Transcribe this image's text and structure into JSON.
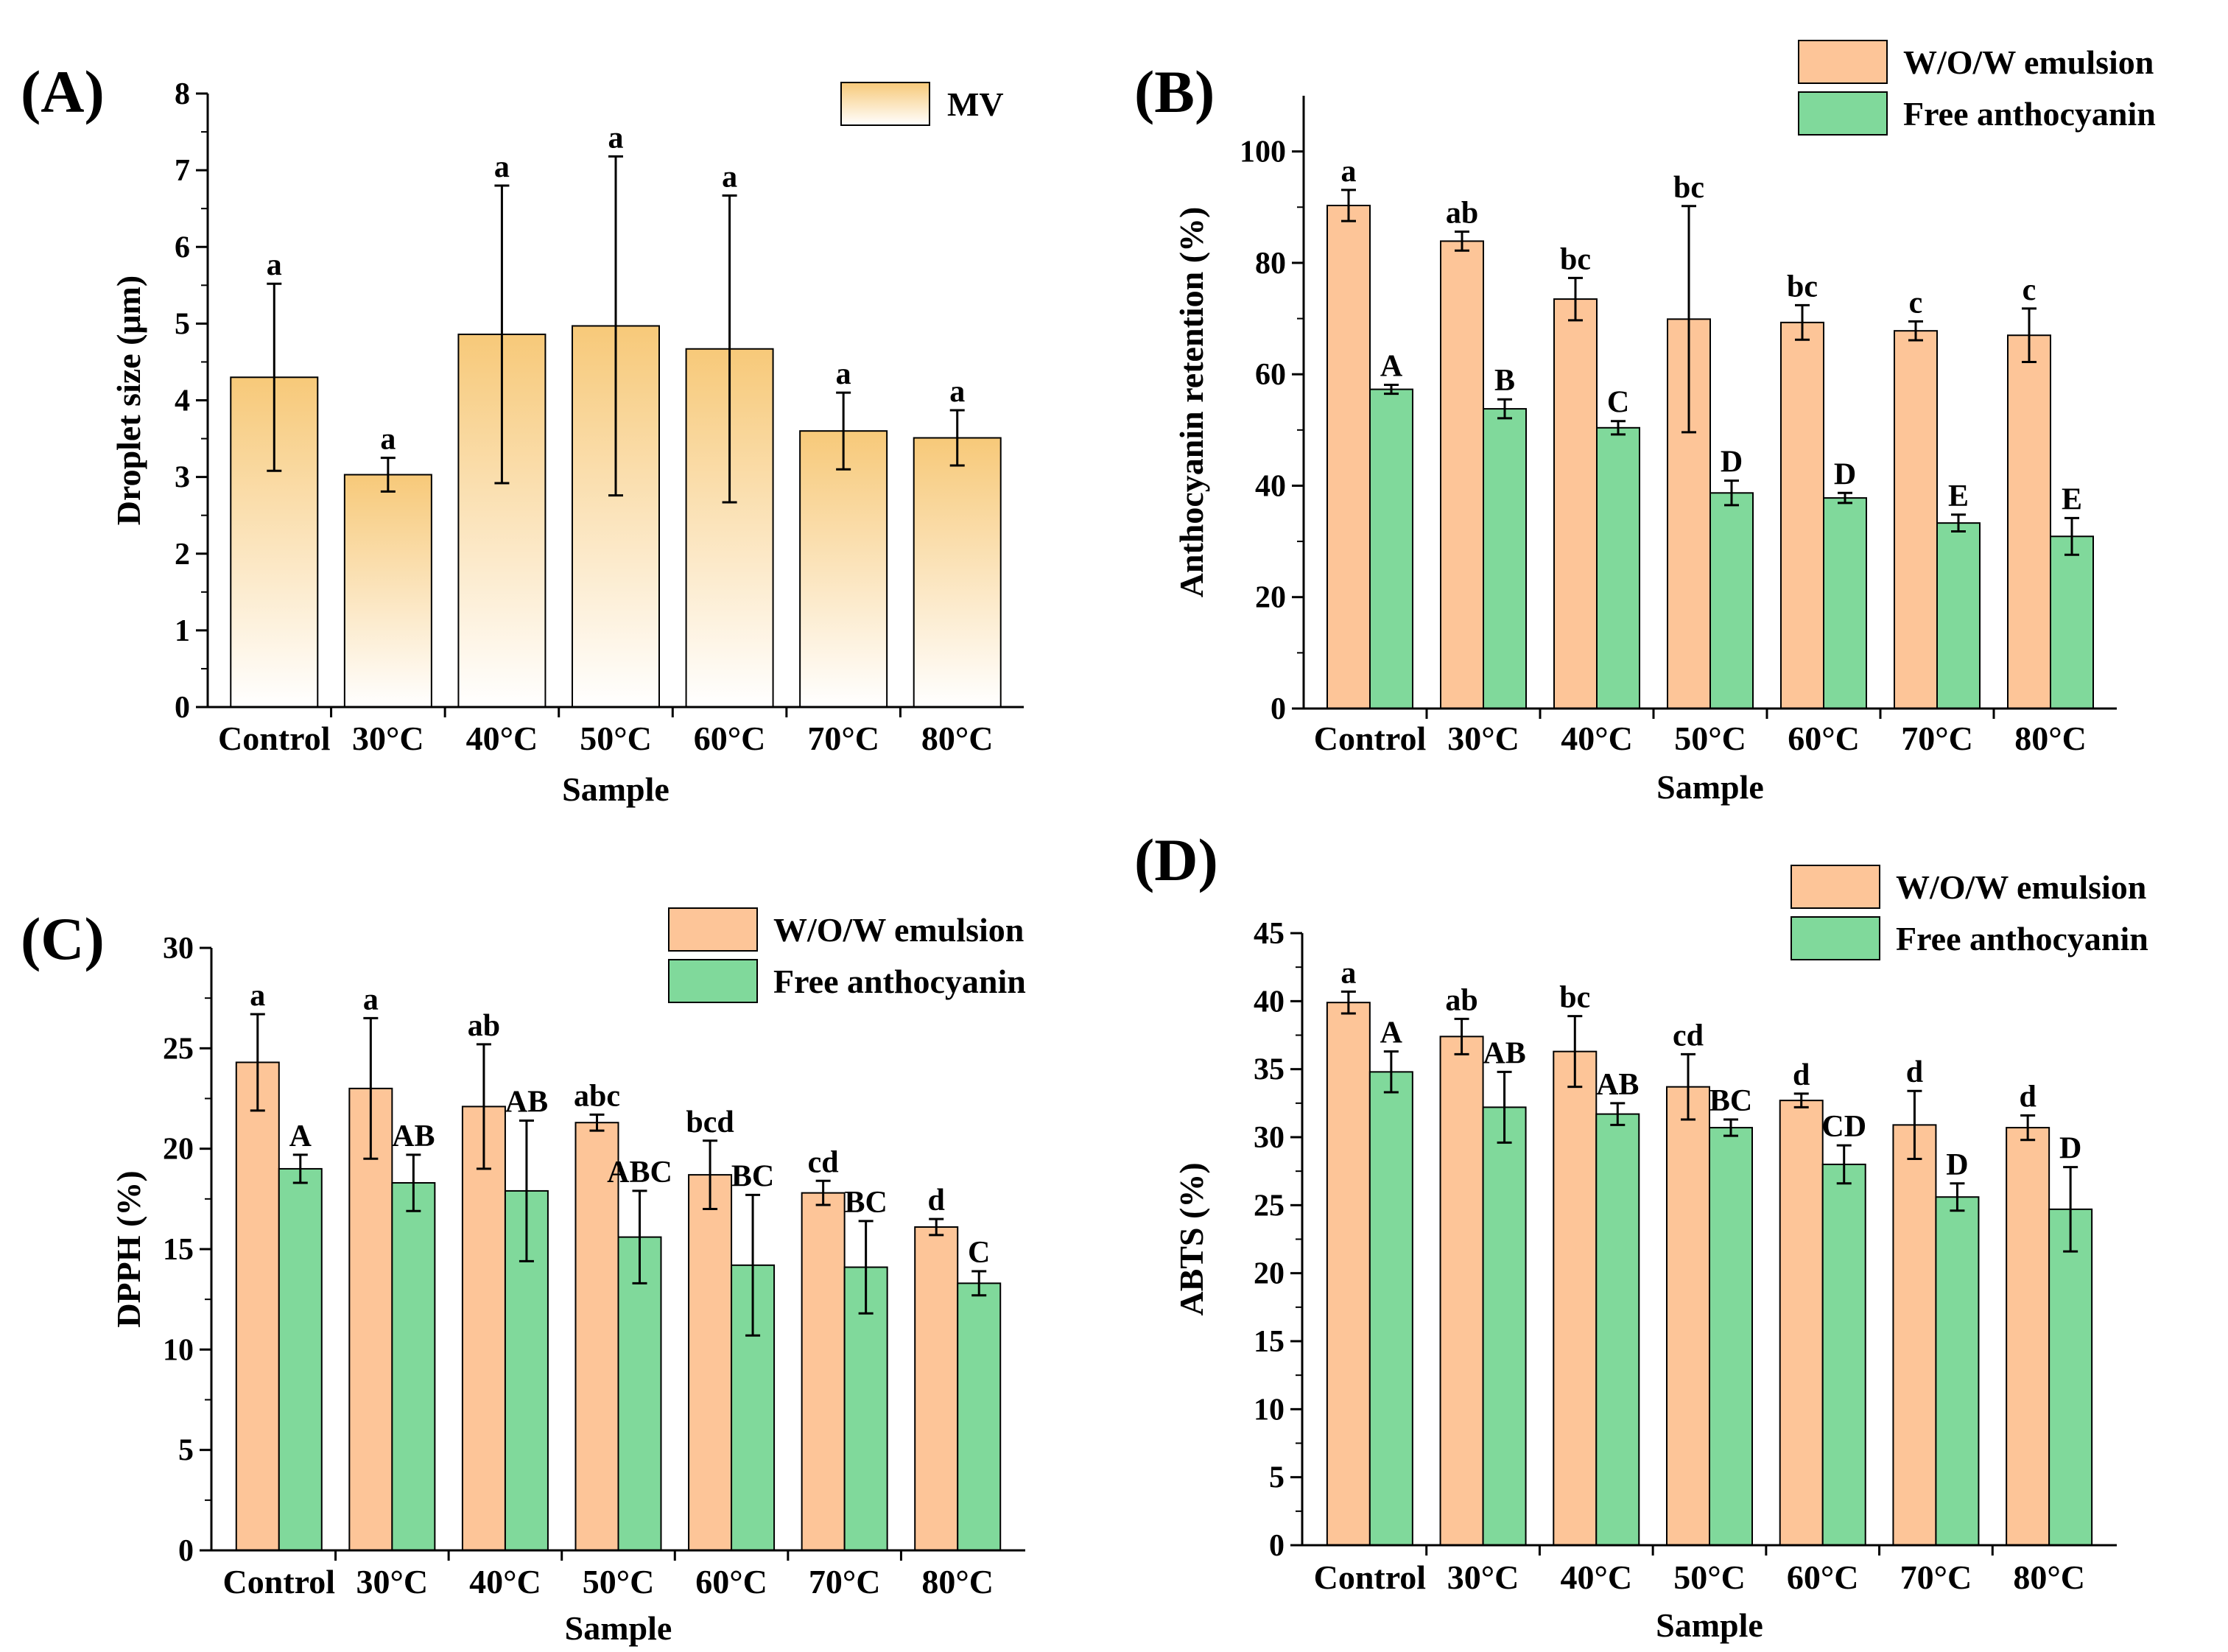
{
  "figure": {
    "colors": {
      "emulsion": "#fdc598",
      "free": "#80d99b",
      "mv_top": "#f7c979",
      "mv_bottom": "#ffffff",
      "axis": "#000000"
    }
  },
  "chart_data": [
    {
      "panel_label": "(A)",
      "type": "bar",
      "xlabel": "Sample",
      "ylabel": "Droplet size (μm)",
      "categories": [
        "Control",
        "30°C",
        "40°C",
        "50°C",
        "60°C",
        "70°C",
        "80°C"
      ],
      "ylim": [
        0,
        8
      ],
      "yticks": [
        0,
        1,
        2,
        3,
        4,
        5,
        6,
        7,
        8
      ],
      "legend": [
        "MV"
      ],
      "legend_position": "top-right",
      "series": [
        {
          "name": "MV",
          "color_key": "mv",
          "values": [
            4.3,
            3.03,
            4.86,
            4.97,
            4.67,
            3.6,
            3.51
          ],
          "errors": [
            1.22,
            0.22,
            1.94,
            2.21,
            2.0,
            0.5,
            0.36
          ],
          "labels": [
            "a",
            "a",
            "a",
            "a",
            "a",
            "a",
            "a"
          ]
        }
      ]
    },
    {
      "panel_label": "(B)",
      "type": "bar",
      "xlabel": "Sample",
      "ylabel": "Anthocyanin retention (%)",
      "categories": [
        "Control",
        "30°C",
        "40°C",
        "50°C",
        "60°C",
        "70°C",
        "80°C"
      ],
      "ylim": [
        0,
        110
      ],
      "yticks": [
        0,
        20,
        40,
        60,
        80,
        100
      ],
      "legend": [
        "W/O/W emulsion",
        "Free anthocyanin"
      ],
      "legend_position": "top-right",
      "series": [
        {
          "name": "W/O/W emulsion",
          "color_key": "emulsion",
          "values": [
            90.3,
            83.9,
            73.5,
            69.9,
            69.3,
            67.8,
            67.0
          ],
          "errors": [
            2.8,
            1.7,
            3.8,
            20.3,
            3.1,
            1.7,
            4.8
          ],
          "labels": [
            "a",
            "ab",
            "bc",
            "bc",
            "bc",
            "c",
            "c"
          ]
        },
        {
          "name": "Free anthocyanin",
          "color_key": "free",
          "values": [
            57.3,
            53.8,
            50.4,
            38.7,
            37.8,
            33.3,
            30.9
          ],
          "errors": [
            0.8,
            1.7,
            1.2,
            2.2,
            0.9,
            1.5,
            3.3
          ],
          "labels": [
            "A",
            "B",
            "C",
            "D",
            "D",
            "E",
            "E"
          ]
        }
      ]
    },
    {
      "panel_label": "(C)",
      "type": "bar",
      "xlabel": "Sample",
      "ylabel": "DPPH (%)",
      "categories": [
        "Control",
        "30°C",
        "40°C",
        "50°C",
        "60°C",
        "70°C",
        "80°C"
      ],
      "ylim": [
        0,
        30
      ],
      "yticks": [
        0,
        5,
        10,
        15,
        20,
        25,
        30
      ],
      "legend": [
        "W/O/W emulsion",
        "Free anthocyanin"
      ],
      "legend_position": "top-right",
      "series": [
        {
          "name": "W/O/W emulsion",
          "color_key": "emulsion",
          "values": [
            24.3,
            23.0,
            22.1,
            21.3,
            18.7,
            17.8,
            16.1
          ],
          "errors": [
            2.4,
            3.5,
            3.1,
            0.4,
            1.7,
            0.6,
            0.4
          ],
          "labels": [
            "a",
            "a",
            "ab",
            "abc",
            "bcd",
            "cd",
            "d"
          ]
        },
        {
          "name": "Free anthocyanin",
          "color_key": "free",
          "values": [
            19.0,
            18.3,
            17.9,
            15.6,
            14.2,
            14.1,
            13.3
          ],
          "errors": [
            0.7,
            1.4,
            3.5,
            2.3,
            3.5,
            2.3,
            0.6
          ],
          "labels": [
            "A",
            "AB",
            "AB",
            "ABC",
            "BC",
            "BC",
            "C"
          ]
        }
      ]
    },
    {
      "panel_label": "(D)",
      "type": "bar",
      "xlabel": "Sample",
      "ylabel": "ABTS (%)",
      "categories": [
        "Control",
        "30°C",
        "40°C",
        "50°C",
        "60°C",
        "70°C",
        "80°C"
      ],
      "ylim": [
        0,
        45
      ],
      "yticks": [
        0,
        5,
        10,
        15,
        20,
        25,
        30,
        35,
        40,
        45
      ],
      "legend": [
        "W/O/W emulsion",
        "Free anthocyanin"
      ],
      "legend_position": "top-right",
      "series": [
        {
          "name": "W/O/W emulsion",
          "color_key": "emulsion",
          "values": [
            39.9,
            37.4,
            36.3,
            33.7,
            32.7,
            30.9,
            30.7
          ],
          "errors": [
            0.8,
            1.3,
            2.6,
            2.4,
            0.5,
            2.5,
            0.9
          ],
          "labels": [
            "a",
            "ab",
            "bc",
            "cd",
            "d",
            "d",
            "d"
          ]
        },
        {
          "name": "Free anthocyanin",
          "color_key": "free",
          "values": [
            34.8,
            32.2,
            31.7,
            30.7,
            28.0,
            25.6,
            24.7
          ],
          "errors": [
            1.5,
            2.6,
            0.8,
            0.6,
            1.4,
            1.0,
            3.1
          ],
          "labels": [
            "A",
            "AB",
            "AB",
            "BC",
            "CD",
            "D",
            "D"
          ]
        }
      ]
    }
  ]
}
